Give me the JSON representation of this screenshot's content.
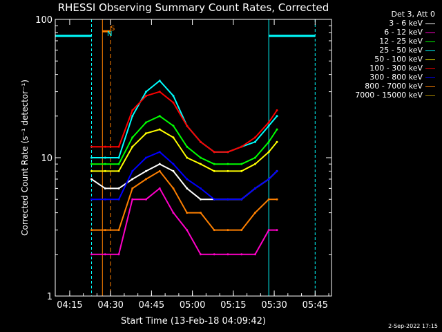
{
  "chart_data": {
    "type": "line",
    "title": "RHESSI Observing Summary Count Rates, Corrected",
    "xlabel": "Start Time (13-Feb-18 04:09:42)",
    "ylabel": "Corrected Count Rate (s⁻¹ detector⁻¹)",
    "yscale": "log",
    "ylim": [
      1,
      100
    ],
    "y_ticks": [
      "1",
      "10",
      "100"
    ],
    "x_ticks": [
      "04:15",
      "04:30",
      "04:45",
      "05:00",
      "05:15",
      "05:30",
      "05:45"
    ],
    "x_tick_minutes": [
      15,
      30,
      45,
      60,
      75,
      90,
      105
    ],
    "xlim_minutes": [
      9.7,
      111
    ],
    "legend_title": "Det 3, Att 0",
    "series": [
      {
        "name": "3 - 6 keV",
        "color": "#ffffff",
        "x": [
          23,
          28,
          33,
          38,
          43,
          48,
          53,
          58,
          63,
          68,
          73,
          78,
          83,
          88,
          91
        ],
        "values": [
          7,
          6,
          6,
          7,
          8,
          9,
          8,
          6,
          5,
          5,
          5,
          5,
          6,
          7,
          8
        ]
      },
      {
        "name": "6 - 12 keV",
        "color": "#ff00c8",
        "x": [
          23,
          28,
          33,
          38,
          43,
          48,
          53,
          58,
          63,
          68,
          73,
          78,
          83,
          88,
          91
        ],
        "values": [
          2,
          2,
          2,
          5,
          5,
          6,
          4,
          3,
          2,
          2,
          2,
          2,
          2,
          3,
          3
        ]
      },
      {
        "name": "12 - 25 keV",
        "color": "#00ff00",
        "x": [
          23,
          28,
          33,
          38,
          43,
          48,
          53,
          58,
          63,
          68,
          73,
          78,
          83,
          88,
          91
        ],
        "values": [
          9,
          9,
          9,
          14,
          18,
          20,
          17,
          12,
          10,
          9,
          9,
          9,
          10,
          13,
          16
        ]
      },
      {
        "name": "25 - 50 keV",
        "color": "#00ffff",
        "x": [
          23,
          28,
          33,
          38,
          43,
          48,
          53,
          58,
          63,
          68,
          73,
          78,
          83,
          88,
          91
        ],
        "values": [
          10,
          10,
          10,
          20,
          30,
          36,
          28,
          17,
          13,
          11,
          11,
          12,
          13,
          17,
          20
        ]
      },
      {
        "name": "50 - 100 keV",
        "color": "#ffff00",
        "x": [
          23,
          28,
          33,
          38,
          43,
          48,
          53,
          58,
          63,
          68,
          73,
          78,
          83,
          88,
          91
        ],
        "values": [
          8,
          8,
          8,
          12,
          15,
          16,
          14,
          10,
          9,
          8,
          8,
          8,
          9,
          11,
          13
        ]
      },
      {
        "name": "100 - 300 keV",
        "color": "#ff0000",
        "x": [
          23,
          28,
          33,
          38,
          43,
          48,
          53,
          58,
          63,
          68,
          73,
          78,
          83,
          88,
          91
        ],
        "values": [
          12,
          12,
          12,
          22,
          28,
          30,
          25,
          17,
          13,
          11,
          11,
          12,
          14,
          18,
          22
        ]
      },
      {
        "name": "300 - 800 keV",
        "color": "#0000ff",
        "x": [
          23,
          28,
          33,
          38,
          43,
          48,
          53,
          58,
          63,
          68,
          73,
          78,
          83,
          88,
          91
        ],
        "values": [
          5,
          5,
          5,
          8,
          10,
          11,
          9,
          7,
          6,
          5,
          5,
          5,
          6,
          7,
          8
        ]
      },
      {
        "name": "800 - 7000 keV",
        "color": "#ff8000",
        "x": [
          23,
          28,
          33,
          38,
          43,
          48,
          53,
          58,
          63,
          68,
          73,
          78,
          83,
          88,
          91
        ],
        "values": [
          3,
          3,
          3,
          6,
          7,
          8,
          6,
          4,
          4,
          3,
          3,
          3,
          4,
          5,
          5
        ]
      },
      {
        "name": "7000 - 15000 keV",
        "color": "#aa8800",
        "x": [],
        "values": []
      }
    ],
    "annotations": [
      {
        "label": "S",
        "color": "#ff8000"
      },
      {
        "label": "N",
        "color": "#00ffff"
      }
    ],
    "grid": false,
    "legend_placement": "top-right"
  },
  "footer": {
    "date": "2-Sep-2022 17:15"
  }
}
